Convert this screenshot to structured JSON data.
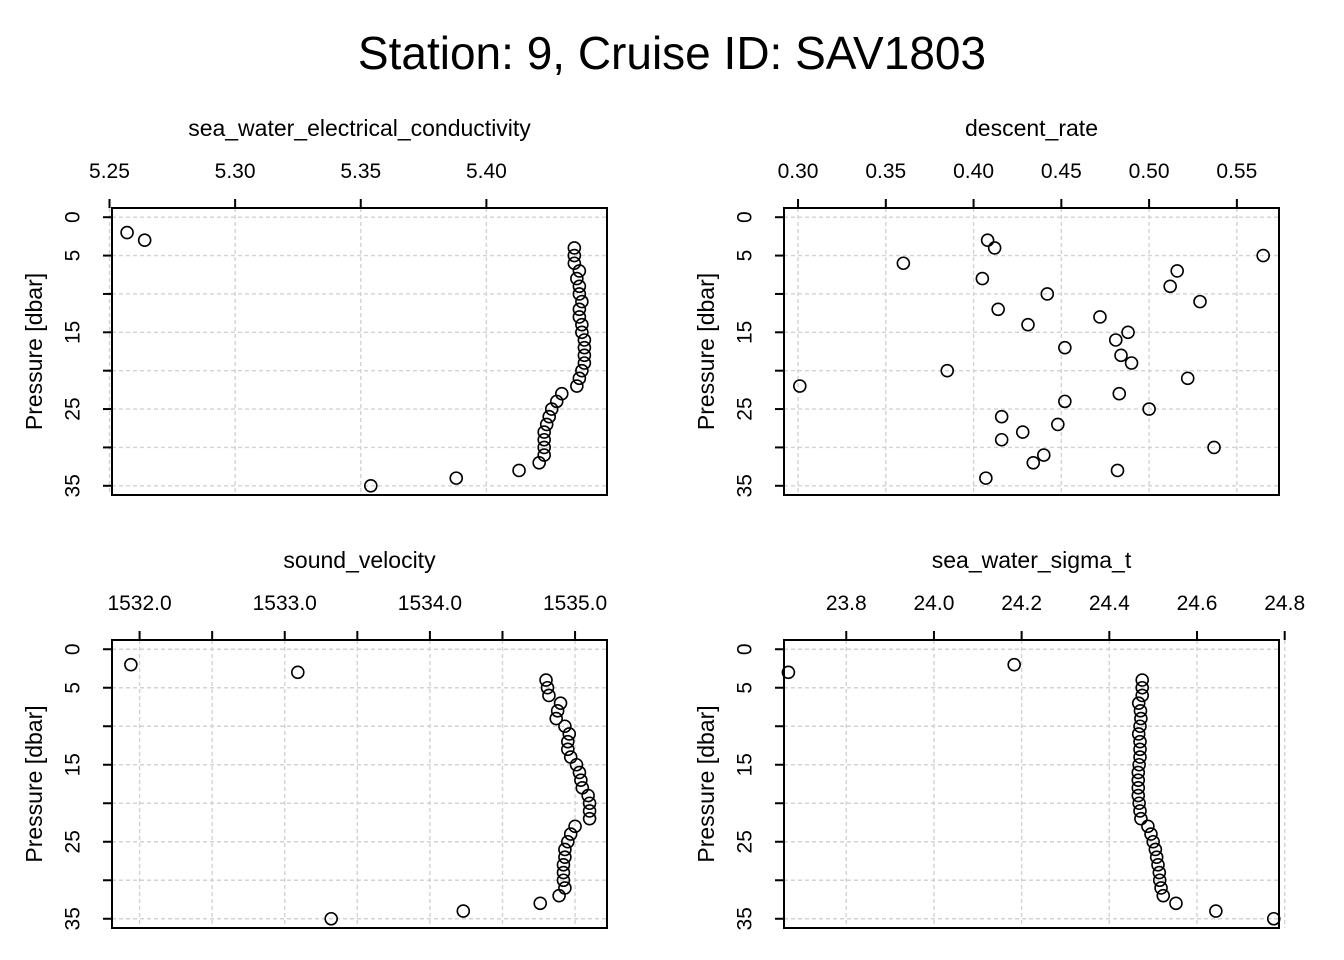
{
  "title": "Station: 9, Cruise ID: SAV1803",
  "chart_data": [
    {
      "type": "scatter",
      "title": "sea_water_electrical_conductivity",
      "xlabel": "",
      "ylabel": "Pressure [dbar]",
      "xlim": [
        5.251,
        5.448
      ],
      "ylim": [
        36.2,
        -1.2
      ],
      "y_reversed": true,
      "grid": true,
      "x_ticks": [
        "5.25",
        "5.30",
        "5.35",
        "5.40"
      ],
      "x_tick_values": [
        5.25,
        5.3,
        5.35,
        5.4
      ],
      "y_ticks": [
        "0",
        "5",
        "15",
        "25",
        "35"
      ],
      "y_tick_values": [
        0,
        5,
        15,
        25,
        35
      ],
      "x_grid": [
        5.25,
        5.3,
        5.35,
        5.4
      ],
      "y_grid": [
        0,
        5,
        10,
        15,
        20,
        25,
        30,
        35
      ],
      "points": [
        [
          5.257,
          2
        ],
        [
          5.264,
          3
        ],
        [
          5.435,
          4
        ],
        [
          5.435,
          5
        ],
        [
          5.435,
          6
        ],
        [
          5.437,
          7
        ],
        [
          5.436,
          8
        ],
        [
          5.437,
          9
        ],
        [
          5.437,
          10
        ],
        [
          5.438,
          11
        ],
        [
          5.437,
          12
        ],
        [
          5.437,
          13
        ],
        [
          5.438,
          14
        ],
        [
          5.438,
          15
        ],
        [
          5.439,
          16
        ],
        [
          5.439,
          17
        ],
        [
          5.439,
          18
        ],
        [
          5.439,
          19
        ],
        [
          5.438,
          20
        ],
        [
          5.437,
          21
        ],
        [
          5.436,
          22
        ],
        [
          5.43,
          23
        ],
        [
          5.428,
          24
        ],
        [
          5.426,
          25
        ],
        [
          5.425,
          26
        ],
        [
          5.424,
          27
        ],
        [
          5.423,
          28
        ],
        [
          5.423,
          29
        ],
        [
          5.423,
          30
        ],
        [
          5.423,
          31
        ],
        [
          5.421,
          32
        ],
        [
          5.413,
          33
        ],
        [
          5.388,
          34
        ],
        [
          5.354,
          35
        ]
      ]
    },
    {
      "type": "scatter",
      "title": "descent_rate",
      "xlabel": "",
      "ylabel": "Pressure [dbar]",
      "xlim": [
        0.292,
        0.574
      ],
      "ylim": [
        36.2,
        -1.2
      ],
      "y_reversed": true,
      "grid": true,
      "x_ticks": [
        "0.30",
        "0.35",
        "0.40",
        "0.45",
        "0.50",
        "0.55"
      ],
      "x_tick_values": [
        0.3,
        0.35,
        0.4,
        0.45,
        0.5,
        0.55
      ],
      "y_ticks": [
        "0",
        "5",
        "15",
        "25",
        "35"
      ],
      "y_tick_values": [
        0,
        5,
        15,
        25,
        35
      ],
      "x_grid": [
        0.3,
        0.35,
        0.4,
        0.45,
        0.5,
        0.55
      ],
      "y_grid": [
        0,
        5,
        10,
        15,
        20,
        25,
        30,
        35
      ],
      "points": [
        [
          0.408,
          3
        ],
        [
          0.412,
          4
        ],
        [
          0.565,
          5
        ],
        [
          0.36,
          6
        ],
        [
          0.516,
          7
        ],
        [
          0.405,
          8
        ],
        [
          0.512,
          9
        ],
        [
          0.442,
          10
        ],
        [
          0.529,
          11
        ],
        [
          0.414,
          12
        ],
        [
          0.472,
          13
        ],
        [
          0.431,
          14
        ],
        [
          0.488,
          15
        ],
        [
          0.481,
          16
        ],
        [
          0.452,
          17
        ],
        [
          0.484,
          18
        ],
        [
          0.49,
          19
        ],
        [
          0.385,
          20
        ],
        [
          0.522,
          21
        ],
        [
          0.301,
          22
        ],
        [
          0.483,
          23
        ],
        [
          0.452,
          24
        ],
        [
          0.5,
          25
        ],
        [
          0.416,
          26
        ],
        [
          0.448,
          27
        ],
        [
          0.428,
          28
        ],
        [
          0.416,
          29
        ],
        [
          0.537,
          30
        ],
        [
          0.44,
          31
        ],
        [
          0.434,
          32
        ],
        [
          0.482,
          33
        ],
        [
          0.407,
          34
        ]
      ]
    },
    {
      "type": "scatter",
      "title": "sound_velocity",
      "xlabel": "",
      "ylabel": "Pressure [dbar]",
      "xlim": [
        1531.81,
        1535.22
      ],
      "ylim": [
        36.2,
        -1.2
      ],
      "y_reversed": true,
      "grid": true,
      "x_ticks": [
        "1532.0",
        "1533.0",
        "1534.0",
        "1535.0"
      ],
      "x_tick_values": [
        1532.0,
        1533.0,
        1534.0,
        1535.0
      ],
      "minor_ticks": [
        1532.5,
        1533.5,
        1534.5
      ],
      "y_ticks": [
        "0",
        "5",
        "15",
        "25",
        "35"
      ],
      "y_tick_values": [
        0,
        5,
        15,
        25,
        35
      ],
      "x_grid": [
        1532.0,
        1532.5,
        1533.0,
        1533.5,
        1534.0,
        1534.5,
        1535.0
      ],
      "y_grid": [
        0,
        5,
        10,
        15,
        20,
        25,
        30,
        35
      ],
      "points": [
        [
          1531.94,
          2
        ],
        [
          1533.09,
          3
        ],
        [
          1534.8,
          4
        ],
        [
          1534.81,
          5
        ],
        [
          1534.82,
          6
        ],
        [
          1534.9,
          7
        ],
        [
          1534.88,
          8
        ],
        [
          1534.87,
          9
        ],
        [
          1534.93,
          10
        ],
        [
          1534.96,
          11
        ],
        [
          1534.95,
          12
        ],
        [
          1534.95,
          13
        ],
        [
          1534.97,
          14
        ],
        [
          1535.01,
          15
        ],
        [
          1535.03,
          16
        ],
        [
          1535.04,
          17
        ],
        [
          1535.05,
          18
        ],
        [
          1535.09,
          19
        ],
        [
          1535.1,
          20
        ],
        [
          1535.1,
          21
        ],
        [
          1535.1,
          22
        ],
        [
          1535.0,
          23
        ],
        [
          1534.97,
          24
        ],
        [
          1534.95,
          25
        ],
        [
          1534.93,
          26
        ],
        [
          1534.93,
          27
        ],
        [
          1534.92,
          28
        ],
        [
          1534.92,
          29
        ],
        [
          1534.92,
          30
        ],
        [
          1534.93,
          31
        ],
        [
          1534.89,
          32
        ],
        [
          1534.76,
          33
        ],
        [
          1534.23,
          34
        ],
        [
          1533.32,
          35
        ]
      ]
    },
    {
      "type": "scatter",
      "title": "sea_water_sigma_t",
      "xlabel": "",
      "ylabel": "Pressure [dbar]",
      "xlim": [
        23.658,
        24.787
      ],
      "ylim": [
        36.2,
        -1.2
      ],
      "y_reversed": true,
      "grid": true,
      "x_ticks": [
        "23.8",
        "24.0",
        "24.2",
        "24.4",
        "24.6",
        "24.8"
      ],
      "x_tick_values": [
        23.8,
        24.0,
        24.2,
        24.4,
        24.6,
        24.8
      ],
      "y_ticks": [
        "0",
        "5",
        "15",
        "25",
        "35"
      ],
      "y_tick_values": [
        0,
        5,
        15,
        25,
        35
      ],
      "x_grid": [
        23.8,
        24.0,
        24.2,
        24.4,
        24.6,
        24.8
      ],
      "y_grid": [
        0,
        5,
        10,
        15,
        20,
        25,
        30,
        35
      ],
      "points": [
        [
          24.183,
          2
        ],
        [
          23.668,
          3
        ],
        [
          24.475,
          4
        ],
        [
          24.475,
          5
        ],
        [
          24.475,
          6
        ],
        [
          24.467,
          7
        ],
        [
          24.471,
          8
        ],
        [
          24.472,
          9
        ],
        [
          24.47,
          10
        ],
        [
          24.467,
          11
        ],
        [
          24.47,
          12
        ],
        [
          24.47,
          13
        ],
        [
          24.47,
          14
        ],
        [
          24.468,
          15
        ],
        [
          24.466,
          16
        ],
        [
          24.466,
          17
        ],
        [
          24.466,
          18
        ],
        [
          24.466,
          19
        ],
        [
          24.468,
          20
        ],
        [
          24.47,
          21
        ],
        [
          24.472,
          22
        ],
        [
          24.488,
          23
        ],
        [
          24.495,
          24
        ],
        [
          24.5,
          25
        ],
        [
          24.505,
          26
        ],
        [
          24.508,
          27
        ],
        [
          24.511,
          28
        ],
        [
          24.514,
          29
        ],
        [
          24.515,
          30
        ],
        [
          24.518,
          31
        ],
        [
          24.523,
          32
        ],
        [
          24.552,
          33
        ],
        [
          24.643,
          34
        ],
        [
          24.775,
          35
        ]
      ]
    }
  ]
}
